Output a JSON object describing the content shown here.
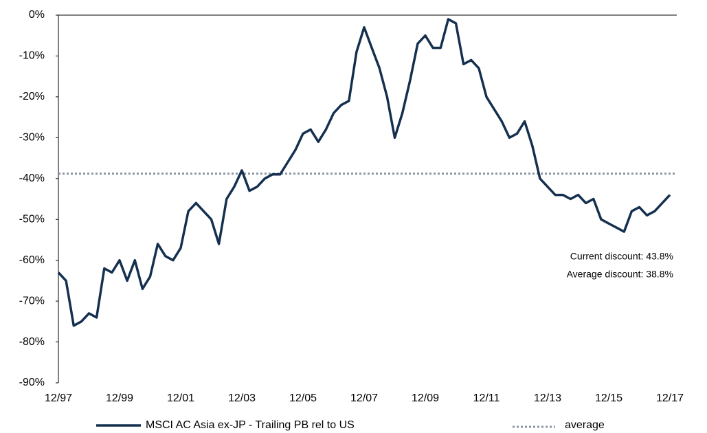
{
  "chart_data": {
    "type": "line",
    "x": [
      "12/97",
      "03/98",
      "06/98",
      "09/98",
      "12/98",
      "03/99",
      "06/99",
      "09/99",
      "12/99",
      "03/00",
      "06/00",
      "09/00",
      "12/00",
      "03/01",
      "06/01",
      "09/01",
      "12/01",
      "03/02",
      "06/02",
      "09/02",
      "12/02",
      "03/03",
      "06/03",
      "09/03",
      "12/03",
      "03/04",
      "06/04",
      "09/04",
      "12/04",
      "03/05",
      "06/05",
      "09/05",
      "12/05",
      "03/06",
      "06/06",
      "09/06",
      "12/06",
      "03/07",
      "06/07",
      "09/07",
      "12/07",
      "03/08",
      "06/08",
      "09/08",
      "12/08",
      "03/09",
      "06/09",
      "09/09",
      "12/09",
      "03/10",
      "06/10",
      "09/10",
      "12/10",
      "03/11",
      "06/11",
      "09/11",
      "12/11",
      "03/12",
      "06/12",
      "09/12",
      "12/12",
      "03/13",
      "06/13",
      "09/13",
      "12/13",
      "03/14",
      "06/14",
      "09/14",
      "12/14",
      "03/15",
      "06/15",
      "09/15",
      "12/15",
      "03/16",
      "06/16",
      "09/16",
      "12/16",
      "03/17",
      "06/17",
      "09/17",
      "12/17"
    ],
    "series": [
      {
        "name": "MSCI AC Asia ex-JP - Trailing PB rel to US",
        "color": "#15304f",
        "values": [
          -63,
          -65,
          -76,
          -75,
          -73,
          -74,
          -62,
          -63,
          -60,
          -65,
          -60,
          -67,
          -64,
          -56,
          -59,
          -60,
          -57,
          -48,
          -46,
          -48,
          -50,
          -56,
          -45,
          -42,
          -38,
          -43,
          -42,
          -40,
          -39,
          -39,
          -36,
          -33,
          -29,
          -28,
          -31,
          -28,
          -24,
          -22,
          -21,
          -9,
          -3,
          -8,
          -13,
          -20,
          -30,
          -24,
          -16,
          -7,
          -5,
          -8,
          -8,
          -1,
          -2,
          -12,
          -11,
          -13,
          -20,
          -23,
          -26,
          -30,
          -29,
          -26,
          -32,
          -40,
          -42,
          -44,
          -44,
          -45,
          -44,
          -46,
          -45,
          -50,
          -51,
          -52,
          -53,
          -48,
          -47,
          -49,
          -48,
          -46,
          -44
        ]
      }
    ],
    "average": {
      "name": "average",
      "color": "#8a96a3",
      "value": -38.8
    },
    "annotations": [
      "Current discount:  43.8%",
      "Average discount:  38.8%"
    ],
    "ylim": [
      -90,
      0
    ],
    "yticks": [
      {
        "value": -90,
        "label": "-90%"
      },
      {
        "value": -80,
        "label": "-80%"
      },
      {
        "value": -70,
        "label": "-70%"
      },
      {
        "value": -60,
        "label": "-60%"
      },
      {
        "value": -50,
        "label": "-50%"
      },
      {
        "value": -40,
        "label": "-40%"
      },
      {
        "value": -30,
        "label": "-30%"
      },
      {
        "value": -20,
        "label": "-20%"
      },
      {
        "value": -10,
        "label": "-10%"
      },
      {
        "value": 0,
        "label": "0%"
      }
    ],
    "xticks": [
      "12/97",
      "12/99",
      "12/01",
      "12/03",
      "12/05",
      "12/07",
      "12/09",
      "12/11",
      "12/13",
      "12/15",
      "12/17"
    ],
    "grid": false
  }
}
